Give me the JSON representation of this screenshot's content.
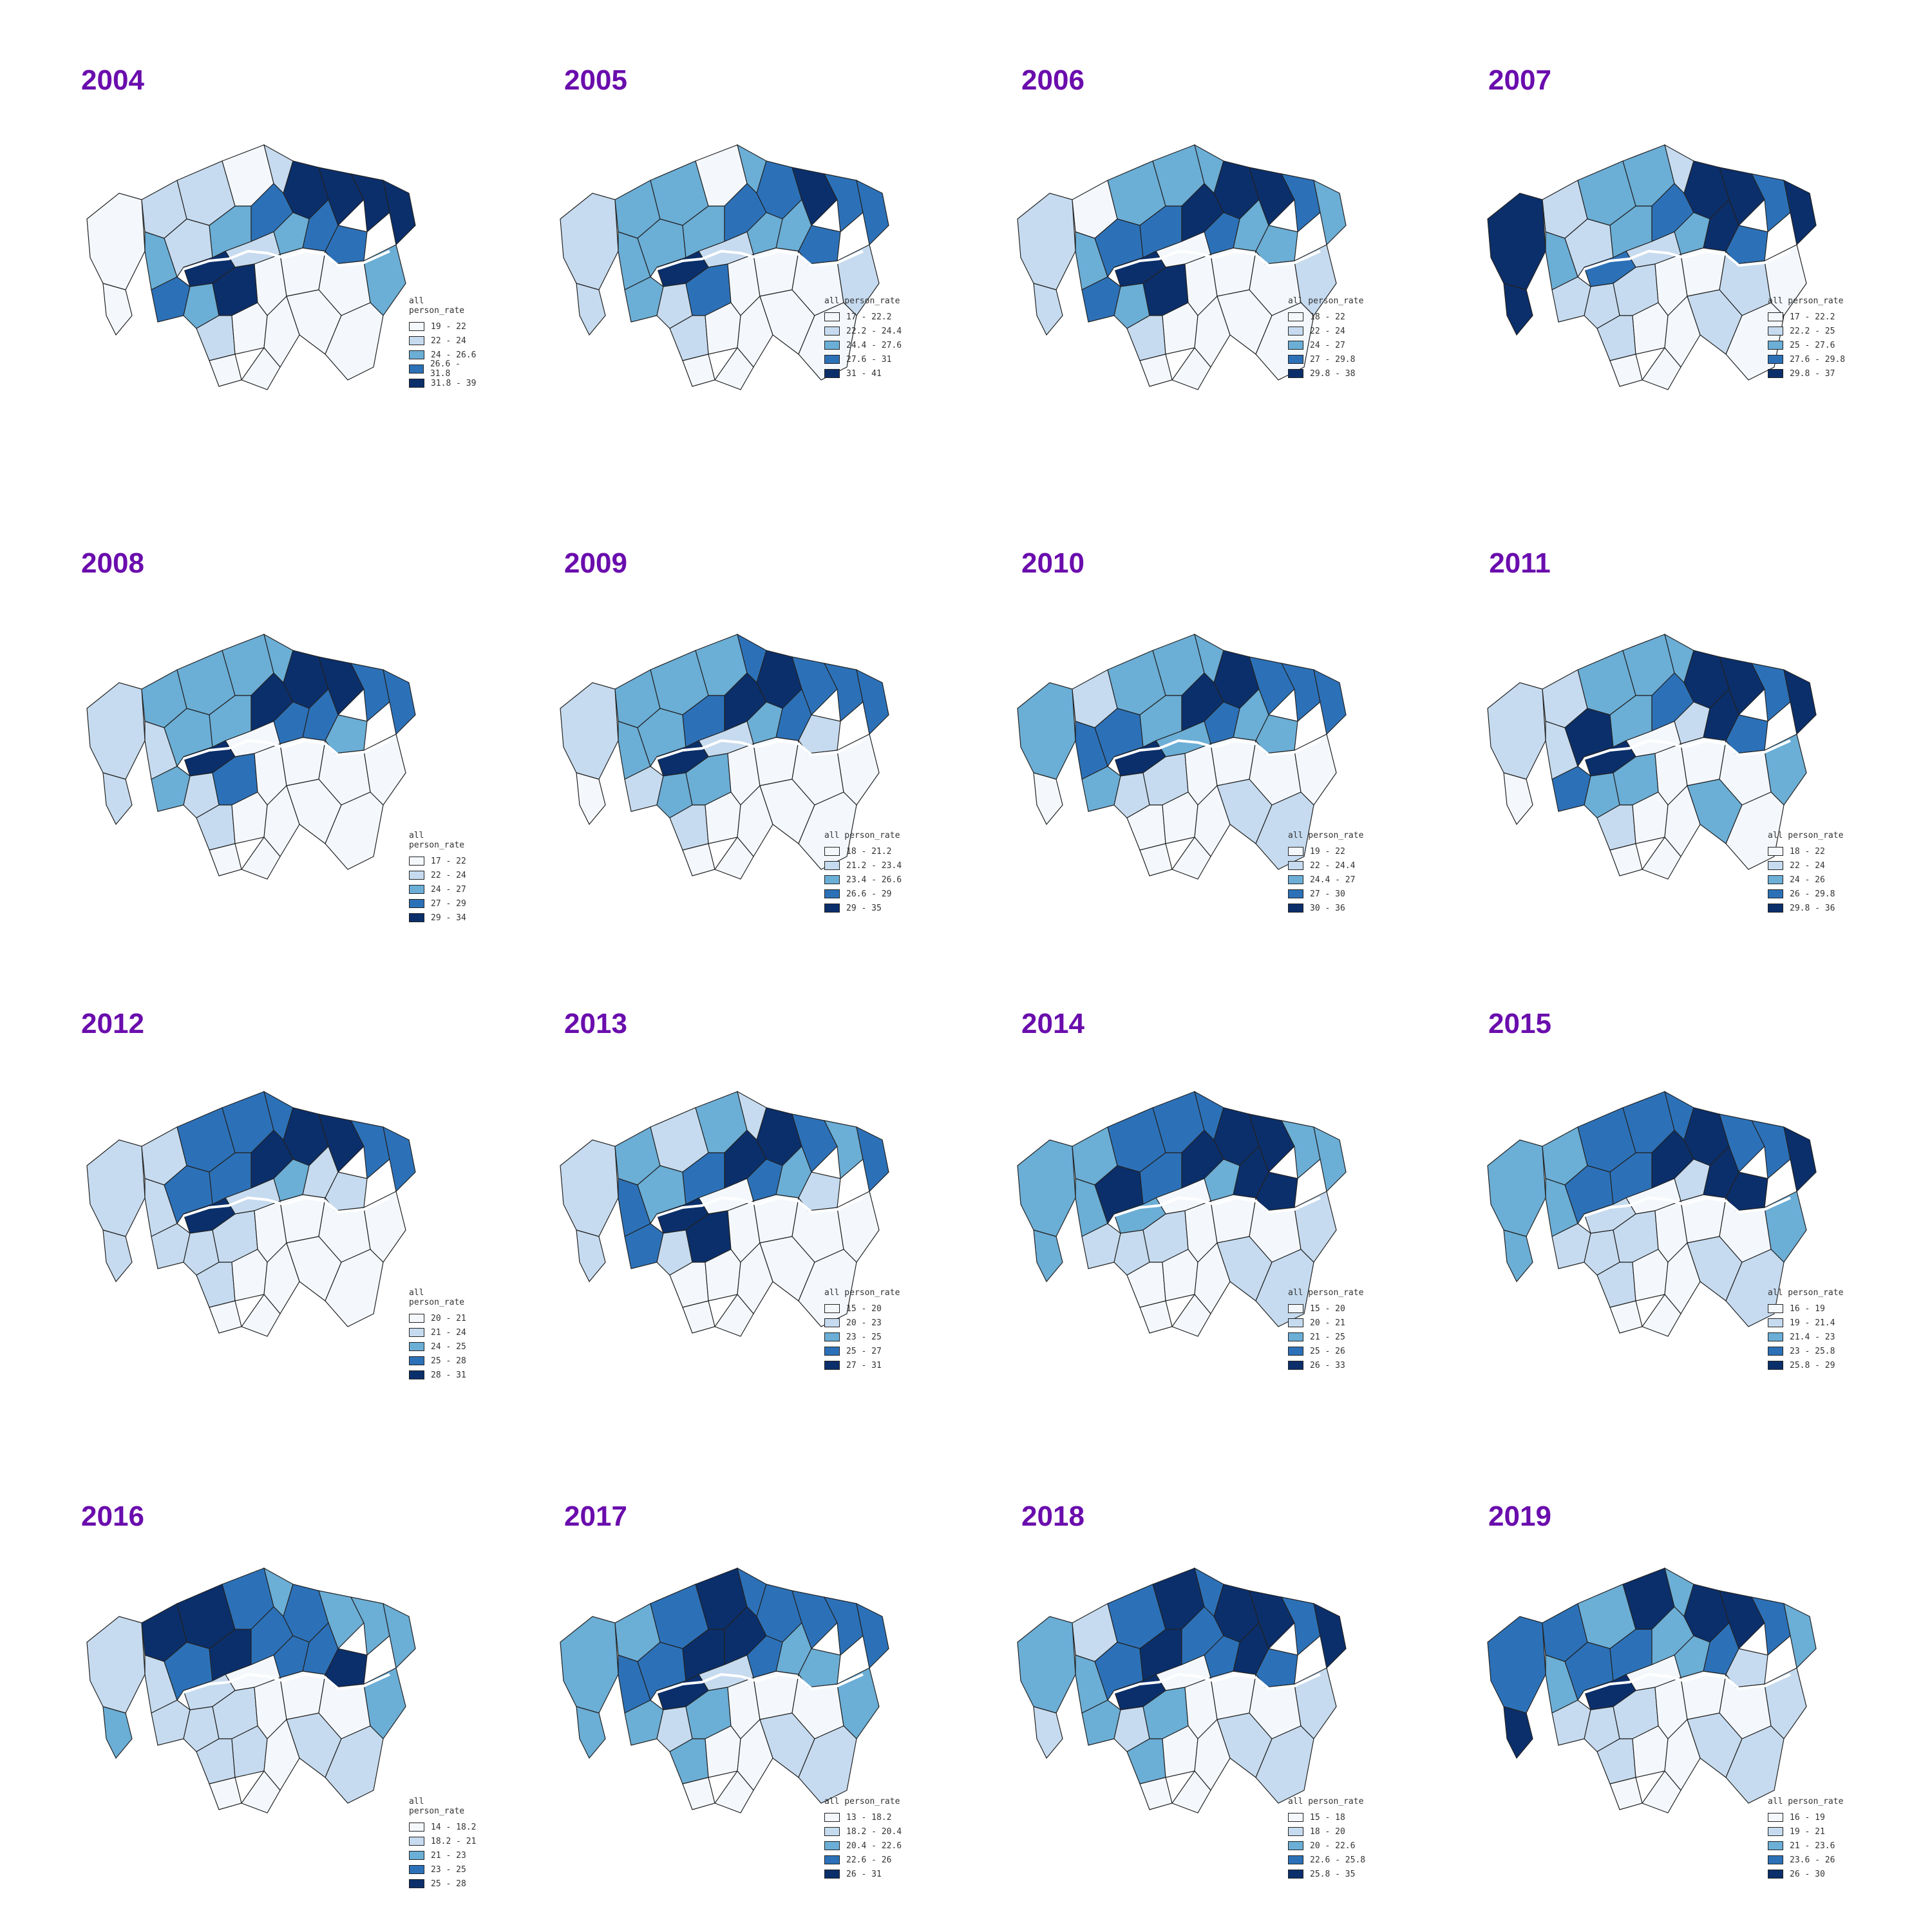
{
  "legend_title": "all person_rate",
  "colors": [
    "#f4f8fd",
    "#c6dbef",
    "#6baed6",
    "#2c71b8",
    "#0b2f6b"
  ],
  "panels": [
    {
      "year": "2004",
      "legend": [
        "19 - 22",
        "22 - 24",
        "24 - 26.6",
        "26.6 - 31.8",
        "31.8 - 39"
      ],
      "classes": [
        0,
        0,
        1,
        1,
        0,
        1,
        2,
        1,
        2,
        3,
        4,
        4,
        4,
        4,
        3,
        3,
        2,
        1,
        4,
        3,
        2,
        4,
        0,
        0,
        0,
        2,
        1,
        0,
        0,
        0,
        0,
        0,
        0
      ]
    },
    {
      "year": "2005",
      "legend": [
        "17 - 22.2",
        "22.2 - 24.4",
        "24.4 - 27.6",
        "27.6 - 31",
        "31 - 41"
      ],
      "classes": [
        1,
        1,
        2,
        2,
        0,
        2,
        2,
        2,
        2,
        3,
        3,
        4,
        3,
        3,
        2,
        3,
        2,
        1,
        4,
        2,
        1,
        3,
        0,
        0,
        0,
        1,
        1,
        0,
        0,
        0,
        0,
        0,
        0
      ]
    },
    {
      "year": "2006",
      "legend": [
        "18 - 22",
        "22 - 24",
        "24 - 27",
        "27 - 29.8",
        "29.8 - 38"
      ],
      "classes": [
        1,
        1,
        0,
        2,
        2,
        2,
        2,
        3,
        3,
        4,
        4,
        4,
        3,
        2,
        2,
        2,
        3,
        0,
        4,
        3,
        2,
        4,
        0,
        0,
        0,
        1,
        1,
        0,
        0,
        0,
        0,
        0,
        0
      ]
    },
    {
      "year": "2007",
      "legend": [
        "17 - 22.2",
        "22.2 - 25",
        "25 - 27.6",
        "27.6 - 29.8",
        "29.8 - 37"
      ],
      "classes": [
        4,
        4,
        1,
        2,
        2,
        1,
        2,
        1,
        2,
        3,
        4,
        4,
        3,
        4,
        4,
        3,
        2,
        1,
        3,
        1,
        1,
        1,
        0,
        0,
        1,
        0,
        1,
        0,
        0,
        1,
        0,
        0,
        0
      ]
    },
    {
      "year": "2008",
      "legend": [
        "17 - 22",
        "22 - 24",
        "24 - 27",
        "27 - 29",
        "29 - 34"
      ],
      "classes": [
        1,
        1,
        2,
        2,
        2,
        2,
        1,
        2,
        2,
        4,
        4,
        4,
        3,
        3,
        3,
        2,
        3,
        0,
        4,
        2,
        1,
        3,
        0,
        0,
        0,
        0,
        1,
        0,
        0,
        0,
        0,
        0,
        0
      ]
    },
    {
      "year": "2009",
      "legend": [
        "18 - 21.2",
        "21.2 - 23.4",
        "23.4 - 26.6",
        "26.6 - 29",
        "29 - 35"
      ],
      "classes": [
        1,
        0,
        2,
        2,
        2,
        3,
        2,
        2,
        3,
        4,
        4,
        3,
        3,
        3,
        3,
        1,
        2,
        1,
        4,
        1,
        2,
        2,
        0,
        0,
        0,
        0,
        1,
        0,
        0,
        0,
        0,
        0,
        0
      ]
    },
    {
      "year": "2010",
      "legend": [
        "19 - 22",
        "22 - 24.4",
        "24.4 - 27",
        "27 - 30",
        "30 - 36"
      ],
      "classes": [
        2,
        0,
        1,
        2,
        2,
        2,
        3,
        3,
        2,
        4,
        4,
        3,
        3,
        3,
        2,
        2,
        3,
        2,
        4,
        2,
        1,
        1,
        0,
        0,
        0,
        0,
        0,
        0,
        0,
        1,
        1,
        0,
        0
      ]
    },
    {
      "year": "2011",
      "legend": [
        "18 - 22",
        "22 - 24",
        "24 - 26",
        "26 - 29.8",
        "29.8 - 36"
      ],
      "classes": [
        1,
        0,
        1,
        2,
        2,
        2,
        1,
        4,
        2,
        3,
        4,
        4,
        3,
        4,
        4,
        3,
        1,
        0,
        4,
        3,
        2,
        2,
        0,
        0,
        0,
        2,
        1,
        0,
        0,
        2,
        0,
        0,
        0
      ]
    },
    {
      "year": "2012",
      "legend": [
        "20 - 21",
        "21 - 24",
        "24 - 25",
        "25 - 28",
        "28 - 31"
      ],
      "classes": [
        1,
        1,
        1,
        3,
        3,
        3,
        1,
        3,
        3,
        4,
        4,
        4,
        3,
        3,
        1,
        1,
        2,
        1,
        4,
        1,
        1,
        1,
        0,
        0,
        0,
        0,
        1,
        0,
        0,
        0,
        0,
        0,
        0
      ]
    },
    {
      "year": "2013",
      "legend": [
        "15 - 20",
        "20 - 23",
        "23 - 25",
        "25 - 27",
        "27 - 31"
      ],
      "classes": [
        1,
        1,
        2,
        1,
        2,
        1,
        3,
        2,
        3,
        4,
        4,
        3,
        2,
        3,
        2,
        1,
        3,
        0,
        4,
        3,
        1,
        4,
        0,
        0,
        0,
        0,
        0,
        0,
        0,
        0,
        0,
        0,
        0
      ]
    },
    {
      "year": "2014",
      "legend": [
        "15 - 20",
        "20 - 21",
        "21 - 25",
        "25 - 26",
        "26 - 33"
      ],
      "classes": [
        2,
        2,
        2,
        3,
        3,
        3,
        2,
        4,
        3,
        4,
        4,
        4,
        2,
        2,
        4,
        4,
        2,
        0,
        2,
        1,
        1,
        1,
        0,
        0,
        0,
        1,
        0,
        0,
        0,
        1,
        1,
        0,
        0
      ]
    },
    {
      "year": "2015",
      "legend": [
        "16 - 19",
        "19 - 21.4",
        "21.4 - 23",
        "23 - 25.8",
        "25.8 - 29"
      ],
      "classes": [
        2,
        2,
        2,
        3,
        3,
        3,
        2,
        3,
        3,
        4,
        4,
        3,
        3,
        4,
        4,
        4,
        1,
        0,
        1,
        1,
        1,
        1,
        0,
        0,
        0,
        2,
        1,
        0,
        0,
        1,
        1,
        0,
        0
      ]
    },
    {
      "year": "2016",
      "legend": [
        "14 - 18.2",
        "18.2 - 21",
        "21 - 23",
        "23 - 25",
        "25 - 28"
      ],
      "classes": [
        1,
        2,
        4,
        4,
        3,
        2,
        1,
        3,
        4,
        3,
        3,
        2,
        2,
        2,
        3,
        4,
        3,
        0,
        1,
        1,
        1,
        1,
        0,
        0,
        0,
        2,
        1,
        1,
        0,
        1,
        1,
        0,
        0
      ]
    },
    {
      "year": "2017",
      "legend": [
        "13 - 18.2",
        "18.2 - 20.4",
        "20.4 - 22.6",
        "22.6 - 26",
        "26 - 31"
      ],
      "classes": [
        2,
        2,
        2,
        3,
        4,
        3,
        3,
        3,
        4,
        4,
        3,
        3,
        3,
        3,
        2,
        2,
        3,
        1,
        4,
        2,
        1,
        2,
        0,
        0,
        0,
        2,
        2,
        0,
        0,
        1,
        1,
        0,
        0
      ]
    },
    {
      "year": "2018",
      "legend": [
        "15 - 18",
        "18 - 20",
        "20 - 22.6",
        "22.6 - 25.8",
        "25.8 - 35"
      ],
      "classes": [
        2,
        1,
        1,
        3,
        4,
        3,
        2,
        3,
        4,
        3,
        4,
        4,
        3,
        4,
        4,
        3,
        3,
        0,
        4,
        2,
        1,
        2,
        0,
        0,
        0,
        1,
        2,
        0,
        0,
        1,
        1,
        0,
        0
      ]
    },
    {
      "year": "2019",
      "legend": [
        "16 - 19",
        "19 - 21",
        "21 - 23.6",
        "23.6 - 26",
        "26 - 30"
      ],
      "classes": [
        3,
        4,
        3,
        2,
        4,
        2,
        2,
        3,
        3,
        2,
        4,
        4,
        3,
        2,
        3,
        1,
        2,
        0,
        4,
        1,
        1,
        1,
        0,
        0,
        0,
        1,
        1,
        0,
        0,
        1,
        1,
        0,
        0
      ]
    }
  ]
}
